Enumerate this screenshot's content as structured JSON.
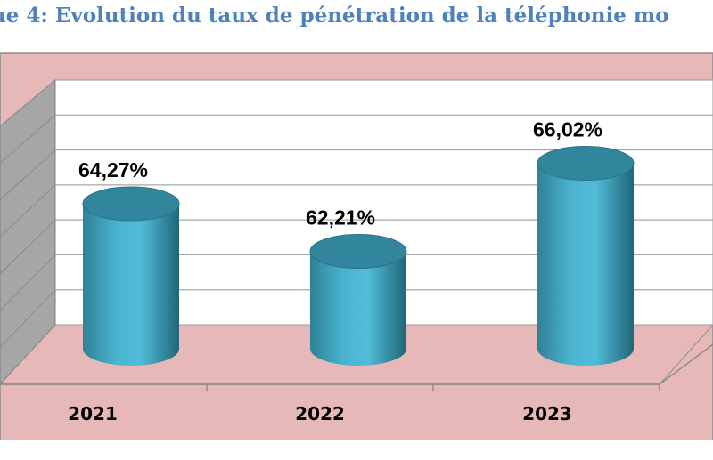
{
  "chart_data": {
    "type": "bar",
    "title": "ue 4: Evolution du taux de pénétration de la téléphonie mo",
    "categories": [
      "2021",
      "2022",
      "2023"
    ],
    "values": [
      64.27,
      62.21,
      66.02
    ],
    "data_labels": [
      "64,27%",
      "62,21%",
      "66,02%"
    ],
    "xlabel": "",
    "ylabel": "",
    "ylim": [
      58,
      67
    ],
    "grid": true,
    "style": "3d-cylinder"
  },
  "colors": {
    "title": "#4f81bd",
    "frame": "#e6b9b8",
    "floor": "#e6b9b8",
    "side_wall": "#a6a6a6",
    "back_wall": "#ffffff",
    "gridline": "#a6a6a6",
    "bar": "#4bacc6",
    "bar_dark": "#2b7589",
    "bar_top": "#31859c"
  }
}
